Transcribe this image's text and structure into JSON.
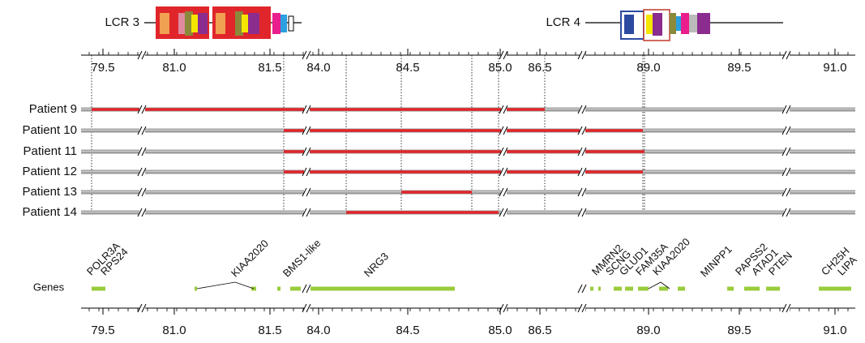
{
  "lcr_labels": [
    "LCR 3",
    "LCR 4"
  ],
  "axis_ticks": [
    "79.5",
    "81.0",
    "81.5",
    "84.0",
    "84.5",
    "85.0",
    "86.5",
    "89.0",
    "89.5",
    "91.0"
  ],
  "patients": [
    "Patient 9",
    "Patient 10",
    "Patient 11",
    "Patient 12",
    "Patient 13",
    "Patient 14"
  ],
  "genes_label": "Genes",
  "genes": [
    "POLR3A",
    "RPS24",
    "KIAA2020",
    "BMS1-like",
    "NRG3",
    "MMRN2",
    "SCNG",
    "GLUD1",
    "FAM35A",
    "KIAA2020",
    "MINPP1",
    "PAPSS2",
    "ATAD1",
    "PTEN",
    "CH25H",
    "LIPA"
  ]
}
